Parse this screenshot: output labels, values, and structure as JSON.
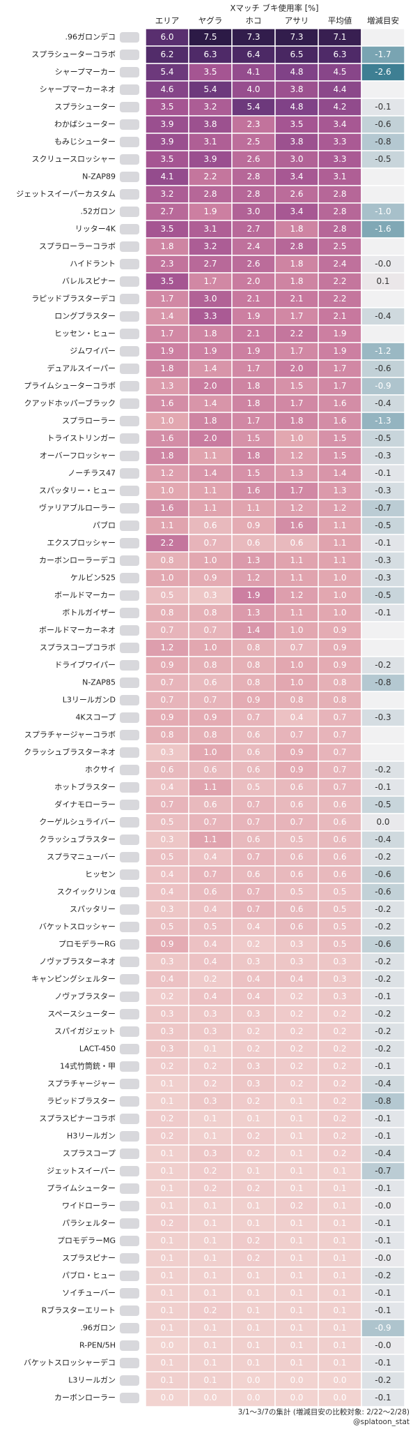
{
  "title": "Xマッチ ブキ使用率 [%]",
  "columns": [
    "エリア",
    "ヤグラ",
    "ホコ",
    "アサリ",
    "平均値",
    "増減目安"
  ],
  "rows": [
    {
      "name": ".96ガロンデコ",
      "values": [
        "6.0",
        "7.5",
        "7.3",
        "7.3",
        "7.1"
      ],
      "change": null
    },
    {
      "name": "スプラシューターコラボ",
      "values": [
        "6.2",
        "6.3",
        "6.4",
        "6.5",
        "6.3"
      ],
      "change": "-1.7"
    },
    {
      "name": "シャープマーカー",
      "values": [
        "5.4",
        "3.5",
        "4.1",
        "4.8",
        "4.5"
      ],
      "change": "-2.6"
    },
    {
      "name": "シャープマーカーネオ",
      "values": [
        "4.6",
        "5.4",
        "4.0",
        "3.8",
        "4.4"
      ],
      "change": null
    },
    {
      "name": "スプラシューター",
      "values": [
        "3.5",
        "3.2",
        "5.4",
        "4.8",
        "4.2"
      ],
      "change": "-0.1"
    },
    {
      "name": "わかばシューター",
      "values": [
        "3.9",
        "3.8",
        "2.3",
        "3.5",
        "3.4"
      ],
      "change": "-0.6"
    },
    {
      "name": "もみじシューター",
      "values": [
        "3.9",
        "3.1",
        "2.5",
        "3.8",
        "3.3"
      ],
      "change": "-0.8"
    },
    {
      "name": "スクリュースロッシャー",
      "values": [
        "3.5",
        "3.9",
        "2.6",
        "3.0",
        "3.3"
      ],
      "change": "-0.5"
    },
    {
      "name": "N-ZAP89",
      "values": [
        "4.1",
        "2.2",
        "2.8",
        "3.4",
        "3.1"
      ],
      "change": null
    },
    {
      "name": "ジェットスイーパーカスタム",
      "values": [
        "3.2",
        "2.8",
        "2.8",
        "2.6",
        "2.8"
      ],
      "change": null
    },
    {
      "name": ".52ガロン",
      "values": [
        "2.7",
        "1.9",
        "3.0",
        "3.4",
        "2.8"
      ],
      "change": "-1.0"
    },
    {
      "name": "リッター4K",
      "values": [
        "3.5",
        "3.1",
        "2.7",
        "1.8",
        "2.8"
      ],
      "change": "-1.6"
    },
    {
      "name": "スプラローラーコラボ",
      "values": [
        "1.8",
        "3.2",
        "2.4",
        "2.8",
        "2.5"
      ],
      "change": null
    },
    {
      "name": "ハイドラント",
      "values": [
        "2.3",
        "2.7",
        "2.6",
        "1.8",
        "2.4"
      ],
      "change": "-0.0"
    },
    {
      "name": "バレルスピナー",
      "values": [
        "3.5",
        "1.7",
        "2.0",
        "1.8",
        "2.2"
      ],
      "change": "0.1"
    },
    {
      "name": "ラピッドブラスターデコ",
      "values": [
        "1.7",
        "3.0",
        "2.1",
        "2.1",
        "2.2"
      ],
      "change": null
    },
    {
      "name": "ロングブラスター",
      "values": [
        "1.4",
        "3.3",
        "1.9",
        "1.7",
        "2.1"
      ],
      "change": "-0.4"
    },
    {
      "name": "ヒッセン・ヒュー",
      "values": [
        "1.7",
        "1.8",
        "2.1",
        "2.2",
        "1.9"
      ],
      "change": null
    },
    {
      "name": "ジムワイパー",
      "values": [
        "1.9",
        "1.9",
        "1.9",
        "1.7",
        "1.9"
      ],
      "change": "-1.2"
    },
    {
      "name": "デュアルスイーパー",
      "values": [
        "1.8",
        "1.4",
        "1.7",
        "2.0",
        "1.7"
      ],
      "change": "-0.6"
    },
    {
      "name": "プライムシューターコラボ",
      "values": [
        "1.3",
        "2.0",
        "1.8",
        "1.5",
        "1.7"
      ],
      "change": "-0.9"
    },
    {
      "name": "クアッドホッパーブラック",
      "values": [
        "1.6",
        "1.4",
        "1.8",
        "1.7",
        "1.6"
      ],
      "change": "-0.4"
    },
    {
      "name": "スプラローラー",
      "values": [
        "1.0",
        "1.8",
        "1.7",
        "1.8",
        "1.6"
      ],
      "change": "-1.3"
    },
    {
      "name": "トライストリンガー",
      "values": [
        "1.6",
        "2.0",
        "1.5",
        "1.0",
        "1.5"
      ],
      "change": "-0.5"
    },
    {
      "name": "オーバーフロッシャー",
      "values": [
        "1.8",
        "1.1",
        "1.8",
        "1.2",
        "1.5"
      ],
      "change": "-0.3"
    },
    {
      "name": "ノーチラス47",
      "values": [
        "1.2",
        "1.4",
        "1.5",
        "1.3",
        "1.4"
      ],
      "change": "-0.1"
    },
    {
      "name": "スパッタリー・ヒュー",
      "values": [
        "1.0",
        "1.1",
        "1.6",
        "1.7",
        "1.3"
      ],
      "change": "-0.3"
    },
    {
      "name": "ヴァリアブルローラー",
      "values": [
        "1.6",
        "1.1",
        "1.1",
        "1.2",
        "1.2"
      ],
      "change": "-0.7"
    },
    {
      "name": "パブロ",
      "values": [
        "1.1",
        "0.6",
        "0.9",
        "1.6",
        "1.1"
      ],
      "change": "-0.5"
    },
    {
      "name": "エクスプロッシャー",
      "values": [
        "2.2",
        "0.7",
        "0.6",
        "0.6",
        "1.1"
      ],
      "change": "-0.1"
    },
    {
      "name": "カーボンローラーデコ",
      "values": [
        "0.8",
        "1.0",
        "1.3",
        "1.1",
        "1.1"
      ],
      "change": "-0.3"
    },
    {
      "name": "ケルビン525",
      "values": [
        "1.0",
        "0.9",
        "1.2",
        "1.1",
        "1.0"
      ],
      "change": "-0.3"
    },
    {
      "name": "ボールドマーカー",
      "values": [
        "0.5",
        "0.3",
        "1.9",
        "1.2",
        "1.0"
      ],
      "change": "-0.5"
    },
    {
      "name": "ボトルガイザー",
      "values": [
        "0.8",
        "0.8",
        "1.3",
        "1.1",
        "1.0"
      ],
      "change": "-0.1"
    },
    {
      "name": "ボールドマーカーネオ",
      "values": [
        "0.7",
        "0.7",
        "1.4",
        "1.0",
        "0.9"
      ],
      "change": null
    },
    {
      "name": "スプラスコープコラボ",
      "values": [
        "1.2",
        "1.0",
        "0.8",
        "0.7",
        "0.9"
      ],
      "change": null
    },
    {
      "name": "ドライブワイパー",
      "values": [
        "0.9",
        "0.8",
        "0.8",
        "1.0",
        "0.9"
      ],
      "change": "-0.2"
    },
    {
      "name": "N-ZAP85",
      "values": [
        "0.7",
        "0.6",
        "0.8",
        "1.0",
        "0.8"
      ],
      "change": "-0.8"
    },
    {
      "name": "L3リールガンD",
      "values": [
        "0.7",
        "0.7",
        "0.9",
        "0.8",
        "0.8"
      ],
      "change": null
    },
    {
      "name": "4Kスコープ",
      "values": [
        "0.9",
        "0.9",
        "0.7",
        "0.4",
        "0.7"
      ],
      "change": "-0.3"
    },
    {
      "name": "スプラチャージャーコラボ",
      "values": [
        "0.8",
        "0.8",
        "0.6",
        "0.7",
        "0.7"
      ],
      "change": null
    },
    {
      "name": "クラッシュブラスターネオ",
      "values": [
        "0.3",
        "1.0",
        "0.6",
        "0.9",
        "0.7"
      ],
      "change": null
    },
    {
      "name": "ホクサイ",
      "values": [
        "0.6",
        "0.6",
        "0.6",
        "0.9",
        "0.7"
      ],
      "change": "-0.2"
    },
    {
      "name": "ホットブラスター",
      "values": [
        "0.4",
        "1.1",
        "0.5",
        "0.6",
        "0.7"
      ],
      "change": "-0.1"
    },
    {
      "name": "ダイナモローラー",
      "values": [
        "0.7",
        "0.6",
        "0.7",
        "0.6",
        "0.6"
      ],
      "change": "-0.5"
    },
    {
      "name": "クーゲルシュライバー",
      "values": [
        "0.5",
        "0.7",
        "0.7",
        "0.7",
        "0.6"
      ],
      "change": "0.0"
    },
    {
      "name": "クラッシュブラスター",
      "values": [
        "0.3",
        "1.1",
        "0.6",
        "0.5",
        "0.6"
      ],
      "change": "-0.4"
    },
    {
      "name": "スプラマニューバー",
      "values": [
        "0.5",
        "0.4",
        "0.7",
        "0.6",
        "0.6"
      ],
      "change": "-0.2"
    },
    {
      "name": "ヒッセン",
      "values": [
        "0.4",
        "0.7",
        "0.6",
        "0.6",
        "0.6"
      ],
      "change": "-0.6"
    },
    {
      "name": "スクイックリンα",
      "values": [
        "0.4",
        "0.6",
        "0.7",
        "0.5",
        "0.5"
      ],
      "change": "-0.6"
    },
    {
      "name": "スパッタリー",
      "values": [
        "0.3",
        "0.4",
        "0.7",
        "0.6",
        "0.5"
      ],
      "change": "-0.2"
    },
    {
      "name": "バケットスロッシャー",
      "values": [
        "0.5",
        "0.5",
        "0.4",
        "0.6",
        "0.5"
      ],
      "change": "-0.2"
    },
    {
      "name": "プロモデラーRG",
      "values": [
        "0.9",
        "0.4",
        "0.2",
        "0.3",
        "0.5"
      ],
      "change": "-0.6"
    },
    {
      "name": "ノヴァブラスターネオ",
      "values": [
        "0.3",
        "0.4",
        "0.3",
        "0.3",
        "0.3"
      ],
      "change": "-0.2"
    },
    {
      "name": "キャンピングシェルター",
      "values": [
        "0.4",
        "0.2",
        "0.4",
        "0.4",
        "0.3"
      ],
      "change": "-0.2"
    },
    {
      "name": "ノヴァブラスター",
      "values": [
        "0.2",
        "0.4",
        "0.4",
        "0.2",
        "0.3"
      ],
      "change": "-0.1"
    },
    {
      "name": "スペースシューター",
      "values": [
        "0.3",
        "0.3",
        "0.3",
        "0.2",
        "0.2"
      ],
      "change": "-0.2"
    },
    {
      "name": "スパイガジェット",
      "values": [
        "0.3",
        "0.3",
        "0.2",
        "0.2",
        "0.2"
      ],
      "change": "-0.2"
    },
    {
      "name": "LACT-450",
      "values": [
        "0.3",
        "0.1",
        "0.2",
        "0.2",
        "0.2"
      ],
      "change": "-0.2"
    },
    {
      "name": "14式竹筒銃・甲",
      "values": [
        "0.2",
        "0.2",
        "0.3",
        "0.2",
        "0.2"
      ],
      "change": "-0.1"
    },
    {
      "name": "スプラチャージャー",
      "values": [
        "0.1",
        "0.2",
        "0.3",
        "0.2",
        "0.2"
      ],
      "change": "-0.4"
    },
    {
      "name": "ラピッドブラスター",
      "values": [
        "0.1",
        "0.3",
        "0.2",
        "0.1",
        "0.2"
      ],
      "change": "-0.8"
    },
    {
      "name": "スプラスピナーコラボ",
      "values": [
        "0.2",
        "0.1",
        "0.1",
        "0.1",
        "0.2"
      ],
      "change": "-0.1"
    },
    {
      "name": "H3リールガン",
      "values": [
        "0.2",
        "0.1",
        "0.2",
        "0.1",
        "0.2"
      ],
      "change": "-0.1"
    },
    {
      "name": "スプラスコープ",
      "values": [
        "0.1",
        "0.3",
        "0.2",
        "0.1",
        "0.2"
      ],
      "change": "-0.4"
    },
    {
      "name": "ジェットスイーパー",
      "values": [
        "0.1",
        "0.2",
        "0.1",
        "0.1",
        "0.1"
      ],
      "change": "-0.7"
    },
    {
      "name": "プライムシューター",
      "values": [
        "0.1",
        "0.2",
        "0.2",
        "0.1",
        "0.1"
      ],
      "change": "-0.1"
    },
    {
      "name": "ワイドローラー",
      "values": [
        "0.1",
        "0.1",
        "0.1",
        "0.2",
        "0.1"
      ],
      "change": "-0.0"
    },
    {
      "name": "パラシェルター",
      "values": [
        "0.2",
        "0.1",
        "0.1",
        "0.1",
        "0.1"
      ],
      "change": "-0.1"
    },
    {
      "name": "プロモデラーMG",
      "values": [
        "0.1",
        "0.1",
        "0.2",
        "0.1",
        "0.1"
      ],
      "change": "-0.1"
    },
    {
      "name": "スプラスピナー",
      "values": [
        "0.1",
        "0.1",
        "0.2",
        "0.1",
        "0.1"
      ],
      "change": "-0.0"
    },
    {
      "name": "パブロ・ヒュー",
      "values": [
        "0.1",
        "0.1",
        "0.1",
        "0.1",
        "0.1"
      ],
      "change": "-0.2"
    },
    {
      "name": "ソイチューバー",
      "values": [
        "0.1",
        "0.1",
        "0.1",
        "0.1",
        "0.1"
      ],
      "change": "-0.1"
    },
    {
      "name": "Rブラスターエリート",
      "values": [
        "0.1",
        "0.2",
        "0.1",
        "0.1",
        "0.1"
      ],
      "change": "-0.1"
    },
    {
      "name": ".96ガロン",
      "values": [
        "0.1",
        "0.1",
        "0.1",
        "0.1",
        "0.1"
      ],
      "change": "-0.9"
    },
    {
      "name": "R-PEN/5H",
      "values": [
        "0.0",
        "0.1",
        "0.1",
        "0.1",
        "0.1"
      ],
      "change": "-0.0"
    },
    {
      "name": "バケットスロッシャーデコ",
      "values": [
        "0.1",
        "0.1",
        "0.1",
        "0.1",
        "0.1"
      ],
      "change": "-0.1"
    },
    {
      "name": "L3リールガン",
      "values": [
        "0.1",
        "0.1",
        "0.0",
        "0.0",
        "0.0"
      ],
      "change": "-0.2"
    },
    {
      "name": "カーボンローラー",
      "values": [
        "0.0",
        "0.0",
        "0.0",
        "0.0",
        "0.0"
      ],
      "change": "-0.1"
    }
  ],
  "footer": {
    "period": "3/1～3/7の集計 (増減目安の比較対象: 2/22～2/28)",
    "credit": "@splatoon_stat"
  }
}
